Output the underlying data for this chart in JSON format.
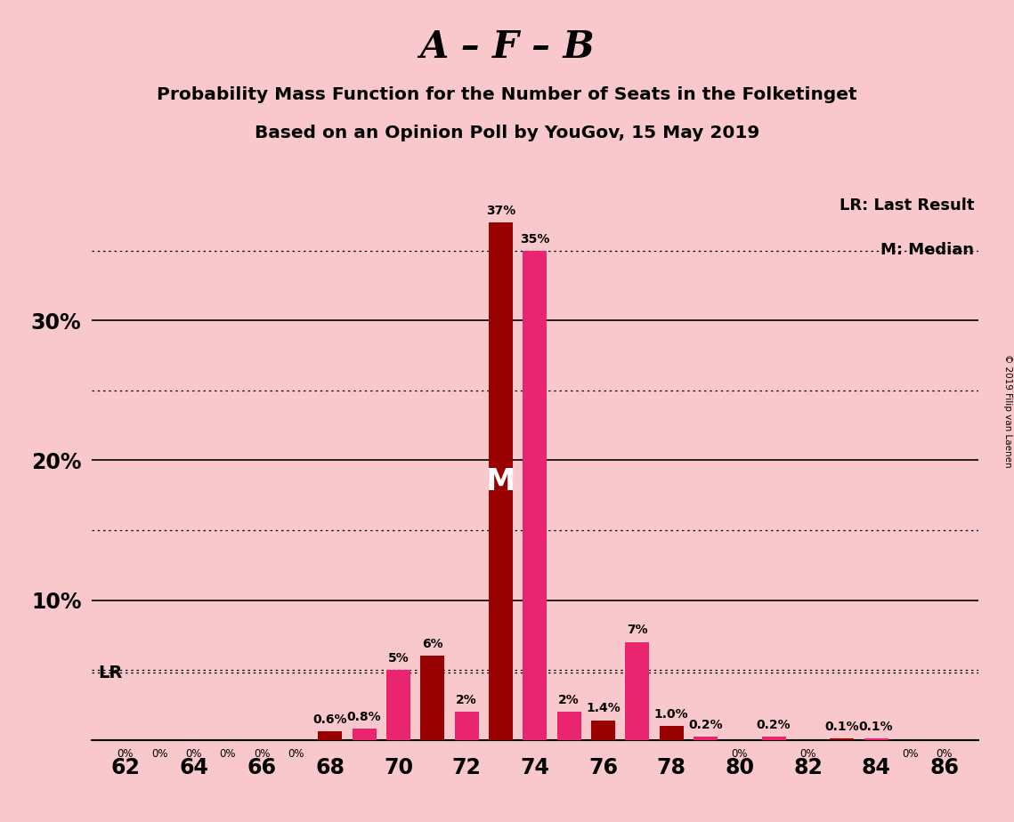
{
  "title_main": "A – F – B",
  "title_sub1": "Probability Mass Function for the Number of Seats in the Folketinget",
  "title_sub2": "Based on an Opinion Poll by YouGov, 15 May 2019",
  "copyright": "© 2019 Filip van Laenen",
  "background_color": "#f9c8cc",
  "dark_red": "#990000",
  "pink": "#e8256e",
  "seats": [
    62,
    63,
    64,
    65,
    66,
    67,
    68,
    69,
    70,
    71,
    72,
    73,
    74,
    75,
    76,
    77,
    78,
    79,
    80,
    81,
    82,
    83,
    84,
    85,
    86
  ],
  "values": [
    0.0,
    0.0,
    0.0,
    0.0,
    0.0,
    0.0,
    0.6,
    0.8,
    5.0,
    6.0,
    2.0,
    37.0,
    35.0,
    2.0,
    1.4,
    7.0,
    1.0,
    0.2,
    0.0,
    0.2,
    0.0,
    0.1,
    0.1,
    0.0,
    0.0
  ],
  "colors": [
    "dr",
    "pk",
    "dr",
    "pk",
    "dr",
    "pk",
    "dr",
    "pk",
    "pk",
    "dr",
    "pk",
    "dr",
    "pk",
    "pk",
    "dr",
    "pk",
    "dr",
    "pk",
    "dr",
    "pk",
    "dr",
    "dr",
    "pk",
    "dr",
    "pk"
  ],
  "bar_labels": [
    "",
    "",
    "",
    "",
    "",
    "",
    "0.6%",
    "0.8%",
    "5%",
    "6%",
    "2%",
    "37%",
    "35%",
    "2%",
    "1.4%",
    "7%",
    "1.0%",
    "0.2%",
    "",
    "0.2%",
    "",
    "0.1%",
    "0.1%",
    "",
    ""
  ],
  "bottom_labels": [
    "0%",
    "0%",
    "0%",
    "0%",
    "0%",
    "0%",
    "0.6%",
    "0.8%",
    "5%",
    "6%",
    "2%",
    "37%",
    "35%",
    "2%",
    "1.4%",
    "7%",
    "1.0%",
    "0.2%",
    "0%",
    "0.2%",
    "0%",
    "0.1%",
    "0.1%",
    "0%",
    "0%"
  ],
  "show_bottom": [
    true,
    true,
    true,
    true,
    true,
    true,
    false,
    false,
    false,
    false,
    false,
    false,
    false,
    false,
    false,
    false,
    false,
    false,
    true,
    false,
    true,
    false,
    false,
    true,
    true
  ],
  "ylim": [
    0,
    40
  ],
  "solid_yticks": [
    10,
    20,
    30
  ],
  "dotted_yticks": [
    5,
    15,
    25,
    35
  ],
  "lr_value": 4.8,
  "median_seat": 73,
  "bar_width": 0.7,
  "x_tick_seats": [
    62,
    64,
    66,
    68,
    70,
    72,
    74,
    76,
    78,
    80,
    82,
    84,
    86
  ]
}
